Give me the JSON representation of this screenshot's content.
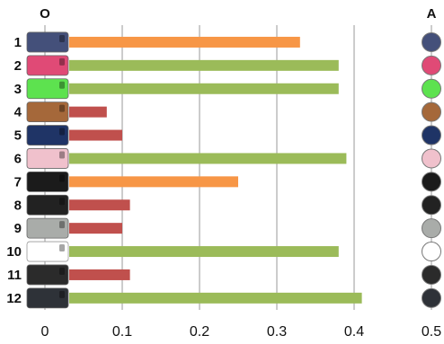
{
  "chart_data": {
    "type": "bar",
    "orientation": "horizontal",
    "column_headers": {
      "left": "O",
      "right": "A"
    },
    "categories": [
      "1",
      "2",
      "3",
      "4",
      "5",
      "6",
      "7",
      "8",
      "9",
      "10",
      "11",
      "12"
    ],
    "values": [
      0.33,
      0.38,
      0.38,
      0.08,
      0.1,
      0.39,
      0.25,
      0.11,
      0.1,
      0.38,
      0.11,
      0.41
    ],
    "bar_color_groups": [
      "orange",
      "green",
      "green",
      "red",
      "red",
      "green",
      "orange",
      "red",
      "red",
      "green",
      "red",
      "green"
    ],
    "colors": {
      "orange": "#f79646",
      "green": "#9bbb59",
      "red": "#c0504d"
    },
    "swatch_colors": [
      "#44507a",
      "#e04a76",
      "#5de24f",
      "#a5683a",
      "#1f3466",
      "#f0c1cc",
      "#1b1b1b",
      "#222222",
      "#a9aca9",
      "#ffffff",
      "#2b2b2b",
      "#2e3238"
    ],
    "xlim": [
      0,
      0.5
    ],
    "xticks": [
      "0",
      "0.1",
      "0.2",
      "0.3",
      "0.4",
      "0.5"
    ],
    "grid": true,
    "title": "",
    "xlabel": "",
    "ylabel": ""
  }
}
